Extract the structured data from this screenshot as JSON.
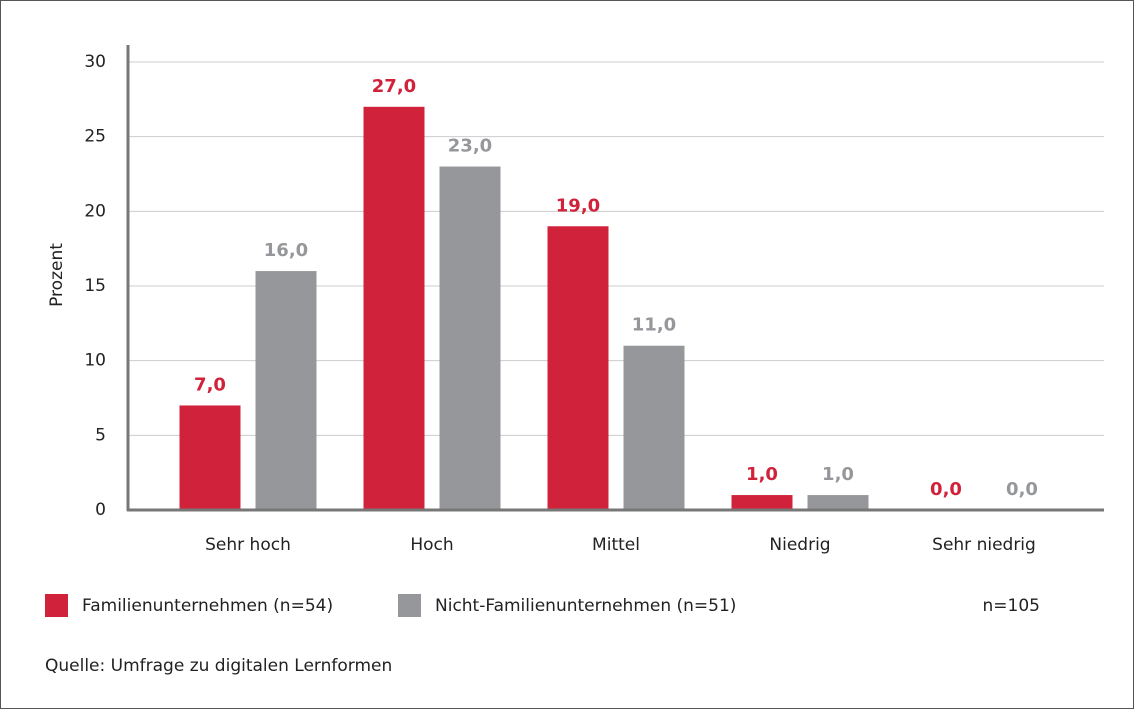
{
  "chart_data": {
    "type": "bar",
    "ylabel": "Prozent",
    "categories": [
      "Sehr hoch",
      "Hoch",
      "Mittel",
      "Niedrig",
      "Sehr niedrig"
    ],
    "series": [
      {
        "name": "Familienunternehmen (n=54)",
        "color": "#d0223a",
        "values": [
          7,
          27,
          19,
          1,
          0
        ],
        "value_labels": [
          "7,0",
          "27,0",
          "19,0",
          "1,0",
          "0,0"
        ]
      },
      {
        "name": "Nicht-Familienunternehmen (n=51)",
        "color": "#96979b",
        "values": [
          16,
          23,
          11,
          1,
          0
        ],
        "value_labels": [
          "16,0",
          "23,0",
          "11,0",
          "1,0",
          "0,0"
        ]
      }
    ],
    "ylim": [
      0,
      30
    ],
    "yticks": [
      0,
      5,
      10,
      15,
      20,
      25,
      30
    ],
    "grid": true,
    "note": "n=105",
    "source": "Quelle: Umfrage zu digitalen Lernformen"
  }
}
